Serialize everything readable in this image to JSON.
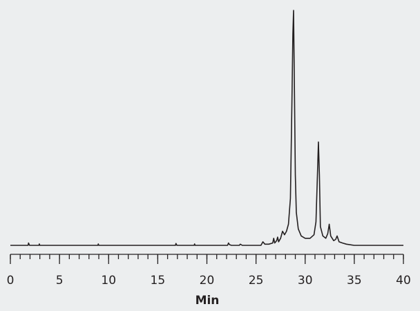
{
  "chart_data": {
    "type": "line",
    "xlabel": "Min",
    "color": "#231f20",
    "x": [
      0,
      1.8,
      1.85,
      1.95,
      2.9,
      2.95,
      3.0,
      8.9,
      8.95,
      9.0,
      16.8,
      16.85,
      16.95,
      18.7,
      18.75,
      18.8,
      22.1,
      22.2,
      22.3,
      22.5,
      23.3,
      23.4,
      23.6,
      25.5,
      25.7,
      25.9,
      26.3,
      26.7,
      26.8,
      26.9,
      27.1,
      27.2,
      27.3,
      27.5,
      27.7,
      27.9,
      28.1,
      28.3,
      28.5,
      28.65,
      28.75,
      28.82,
      28.9,
      29.0,
      29.1,
      29.3,
      29.6,
      30.0,
      30.5,
      30.9,
      31.1,
      31.25,
      31.35,
      31.45,
      31.55,
      31.8,
      32.1,
      32.3,
      32.45,
      32.6,
      32.9,
      33.1,
      33.25,
      33.45,
      33.8,
      34.2,
      35.0,
      40
    ],
    "values": [
      0,
      0,
      1,
      0,
      0,
      0.6,
      0,
      0,
      0.6,
      0,
      0,
      0.8,
      0,
      0,
      0.6,
      0,
      0,
      1,
      0.3,
      0,
      0,
      0.5,
      0,
      0,
      1.5,
      0.5,
      0.5,
      1,
      3,
      1,
      2,
      3.5,
      1.5,
      3,
      6,
      4.5,
      6,
      9,
      20,
      60,
      90,
      100,
      70,
      30,
      14,
      7,
      4,
      3,
      3,
      4.5,
      10,
      30,
      44,
      30,
      8,
      4,
      3,
      5,
      9,
      4,
      2,
      2.5,
      4,
      1.5,
      1,
      0.5,
      0,
      0
    ],
    "xlim": [
      0,
      40
    ],
    "ylim": [
      0,
      100
    ],
    "xticks": [
      0,
      5,
      10,
      15,
      20,
      25,
      30,
      35,
      40
    ],
    "xminorticks": [
      0,
      1,
      2,
      3,
      4,
      5,
      6,
      7,
      8,
      9,
      10,
      11,
      12,
      13,
      14,
      15,
      16,
      17,
      18,
      19,
      20,
      21,
      22,
      23,
      24,
      25,
      26,
      27,
      28,
      29,
      30,
      31,
      32,
      33,
      34,
      35,
      36,
      37,
      38,
      39,
      40
    ]
  }
}
